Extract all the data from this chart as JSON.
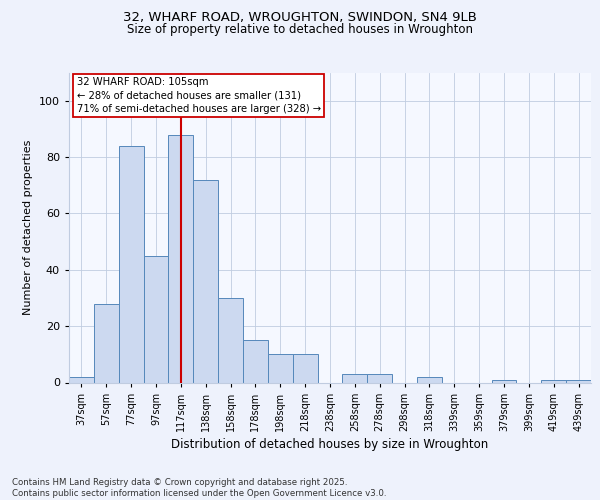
{
  "title_line1": "32, WHARF ROAD, WROUGHTON, SWINDON, SN4 9LB",
  "title_line2": "Size of property relative to detached houses in Wroughton",
  "xlabel": "Distribution of detached houses by size in Wroughton",
  "ylabel": "Number of detached properties",
  "categories": [
    "37sqm",
    "57sqm",
    "77sqm",
    "97sqm",
    "117sqm",
    "138sqm",
    "158sqm",
    "178sqm",
    "198sqm",
    "218sqm",
    "238sqm",
    "258sqm",
    "278sqm",
    "298sqm",
    "318sqm",
    "339sqm",
    "359sqm",
    "379sqm",
    "399sqm",
    "419sqm",
    "439sqm"
  ],
  "values": [
    2,
    28,
    84,
    45,
    88,
    72,
    30,
    15,
    10,
    10,
    0,
    3,
    3,
    0,
    2,
    0,
    0,
    1,
    0,
    1,
    1
  ],
  "bar_color": "#ccd9f0",
  "bar_edge_color": "#5588bb",
  "vline_x": 4.0,
  "vline_color": "#cc0000",
  "annotation_text": "32 WHARF ROAD: 105sqm\n← 28% of detached houses are smaller (131)\n71% of semi-detached houses are larger (328) →",
  "annotation_box_color": "#ffffff",
  "annotation_box_edge": "#cc0000",
  "ylim": [
    0,
    110
  ],
  "yticks": [
    0,
    20,
    40,
    60,
    80,
    100
  ],
  "footnote": "Contains HM Land Registry data © Crown copyright and database right 2025.\nContains public sector information licensed under the Open Government Licence v3.0.",
  "bg_color": "#eef2fc",
  "plot_bg_color": "#f5f8ff",
  "grid_color": "#c0cce0",
  "title1_fontsize": 9.5,
  "title2_fontsize": 8.5
}
